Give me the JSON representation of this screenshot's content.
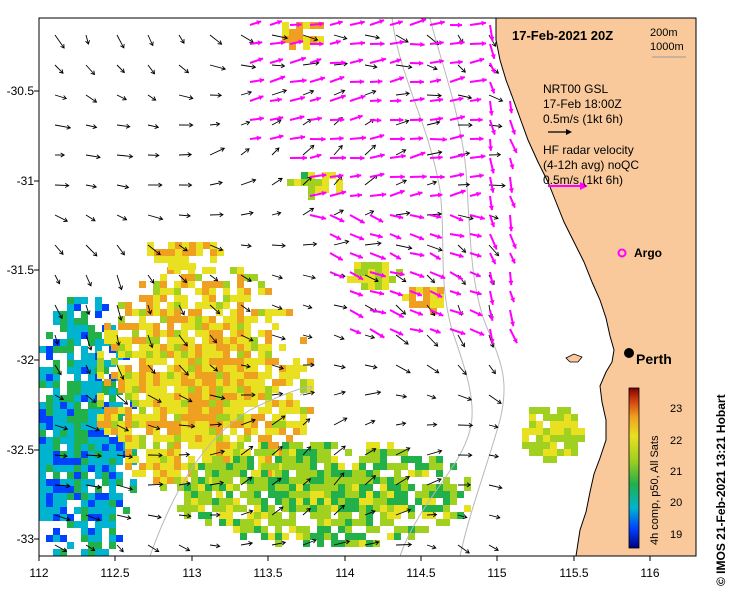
{
  "title": "17-Feb-2021 20Z",
  "scale": {
    "line1": "200m",
    "line2": "1000m"
  },
  "legend_nrt": {
    "line1": "NRT00 GSL",
    "line2": "17-Feb 18:00Z",
    "line3": "0.5m/s (1kt 6h)"
  },
  "legend_hf": {
    "line1": "HF radar velocity",
    "line2": "(4-12h avg) noQC",
    "line3": "0.5m/s (1kt 6h)"
  },
  "places": {
    "argo": "Argo",
    "perth": "Perth"
  },
  "colorbar": {
    "title": "4h comp, p50, All Sats",
    "ticks": [
      "23",
      "22",
      "21",
      "20",
      "19"
    ]
  },
  "credit": "© IMOS 21-Feb-2021 13:21 Hobart",
  "axes": {
    "lon_ticks": [
      "112",
      "112.5",
      "113",
      "113.5",
      "114",
      "114.5",
      "115",
      "115.5",
      "116"
    ],
    "lat_ticks": [
      "-30.5",
      "-31",
      "-31.5",
      "-32",
      "-32.5",
      "-33"
    ]
  },
  "colors": {
    "land": "#f9c99b",
    "current_arrows": "#000000",
    "hf_radar_arrows": "#ff00ff",
    "argo": "#ff00ff"
  },
  "chart_data": {
    "type": "heatmap",
    "variable": "sea surface temperature",
    "xlim": [
      112,
      116.3
    ],
    "ylim": [
      -33.1,
      -30.1
    ],
    "colorbar_range": [
      18.8,
      23.5
    ]
  }
}
